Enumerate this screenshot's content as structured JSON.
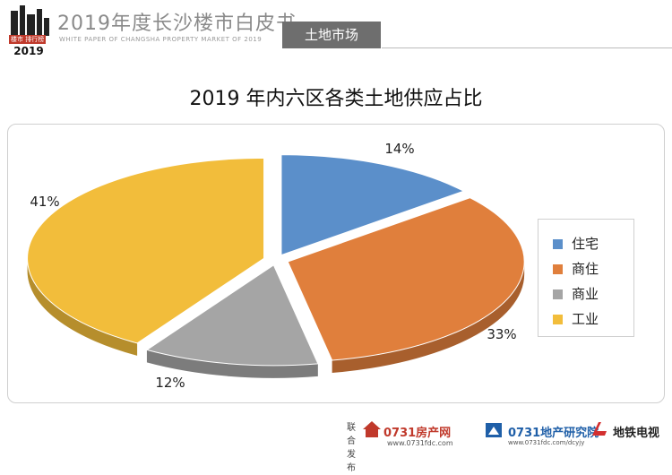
{
  "header": {
    "logo_year": "2019",
    "logo_tag": "楼市 排行榜",
    "title_cn": "2019年度长沙楼市白皮书",
    "title_en": "WHITE PAPER OF CHANGSHA PROPERTY MARKET OF 2019",
    "section": "土地市场"
  },
  "chart_data": {
    "type": "pie",
    "title": "2019 年内六区各类土地供应占比",
    "categories": [
      "住宅",
      "商住",
      "商业",
      "工业"
    ],
    "values": [
      14,
      33,
      12,
      41
    ],
    "labels": [
      "14%",
      "33%",
      "12%",
      "41%"
    ],
    "colors": [
      "#5b8fca",
      "#e07f3c",
      "#a5a5a5",
      "#f2bd3b"
    ],
    "exploded": true,
    "style": "3d",
    "legend_position": "right"
  },
  "footer": {
    "label": "联合发布",
    "org1": "0731房产网",
    "org1_url": "www.0731fdc.com",
    "org2": "0731地产研究院",
    "org2_url": "www.0731fdc.com/dcyjy",
    "org3": "地铁电视"
  }
}
